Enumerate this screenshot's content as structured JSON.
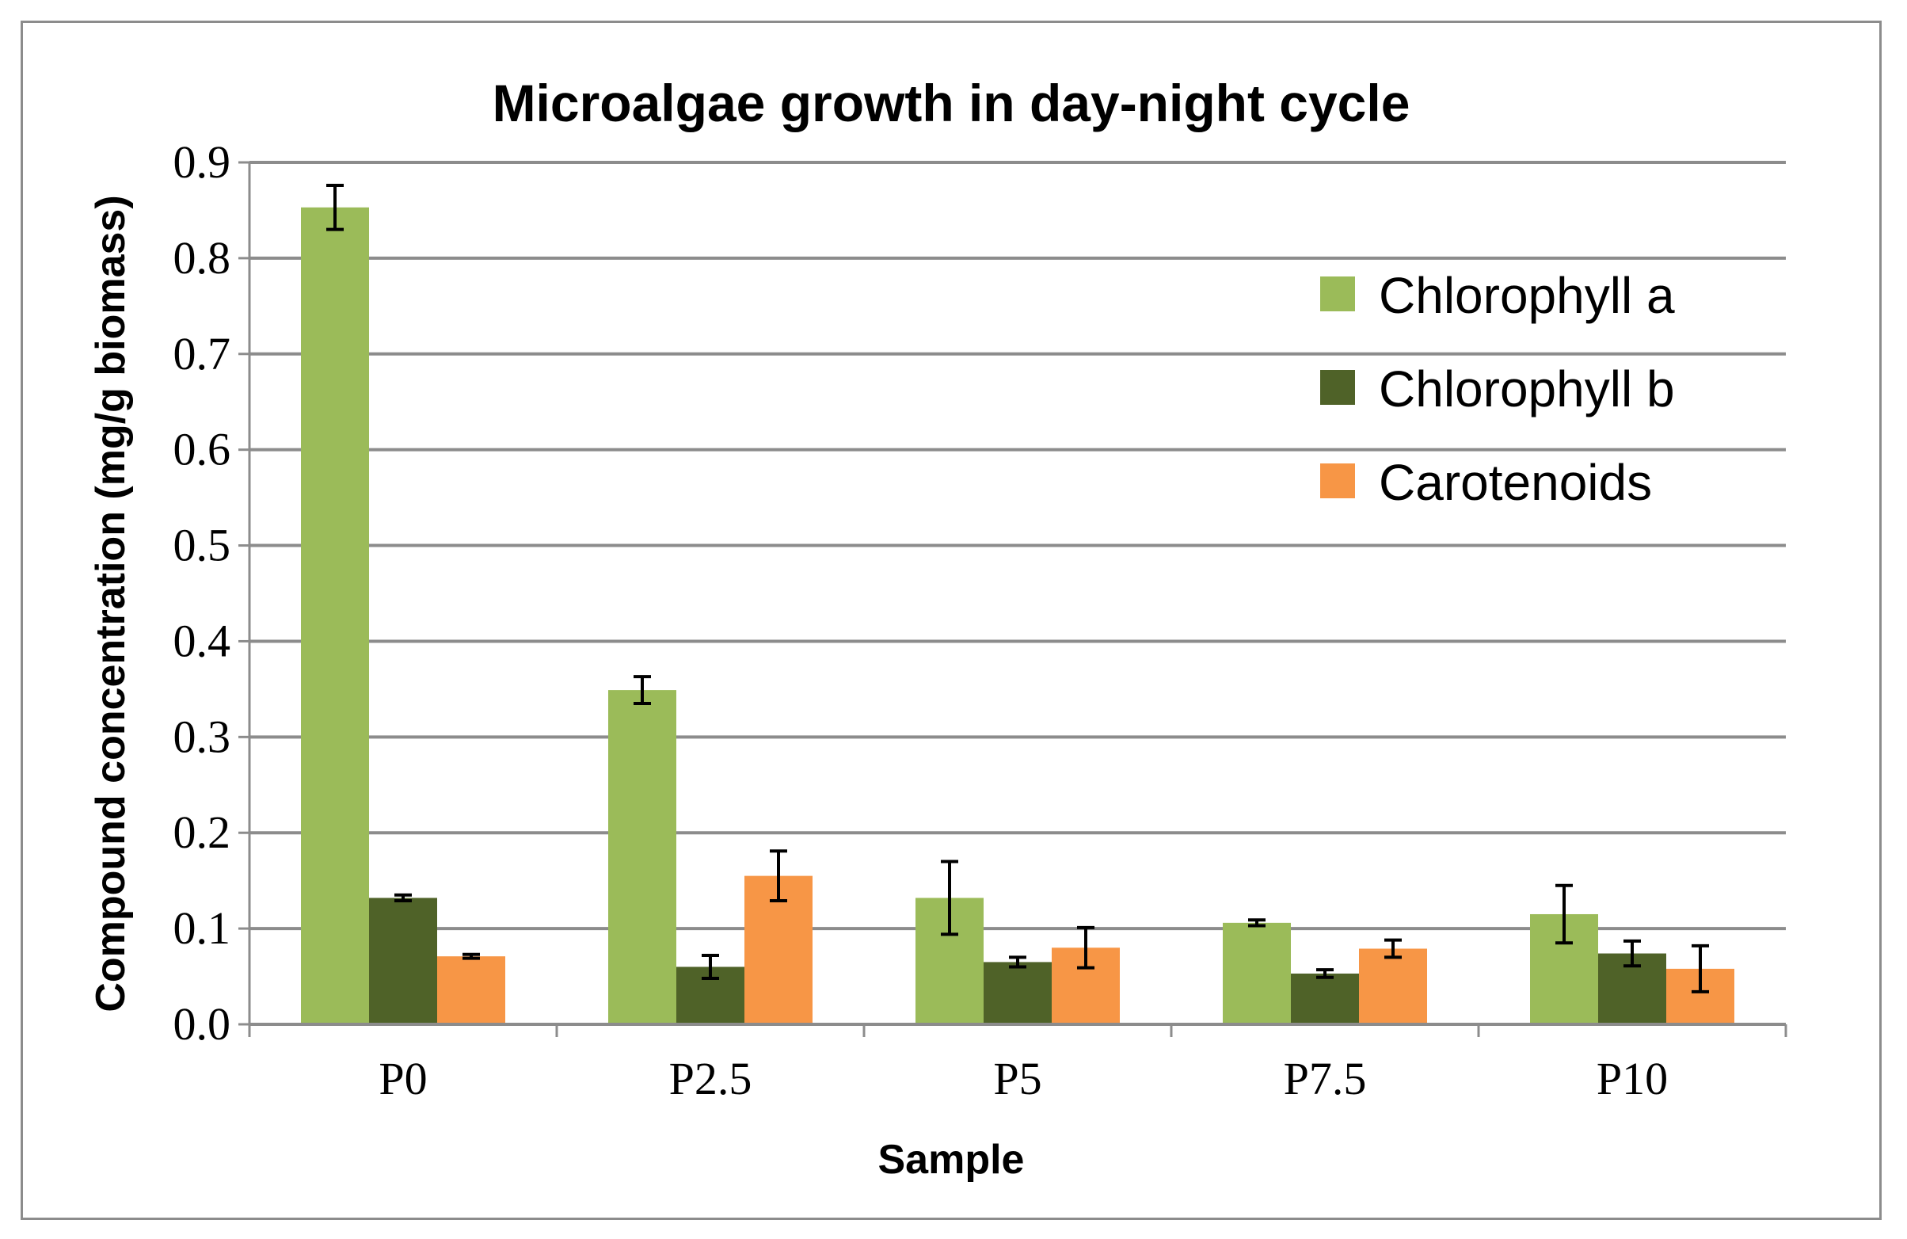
{
  "chart_data": {
    "type": "bar",
    "title": "Microalgae growth in day-night cycle",
    "xlabel": "Sample",
    "ylabel": "Compound concentration (mg/g biomass)",
    "categories": [
      "P0",
      "P2.5",
      "P5",
      "P7.5",
      "P10"
    ],
    "ylim": [
      0,
      0.9
    ],
    "yticks": [
      "0.0",
      "0.1",
      "0.2",
      "0.3",
      "0.4",
      "0.5",
      "0.6",
      "0.7",
      "0.8",
      "0.9"
    ],
    "grid": true,
    "legend_position": "top-right",
    "series": [
      {
        "name": "Chlorophyll a",
        "color": "#9bbb59",
        "values": [
          0.853,
          0.349,
          0.132,
          0.106,
          0.115
        ],
        "errors": [
          0.023,
          0.014,
          0.038,
          0.003,
          0.03
        ]
      },
      {
        "name": "Chlorophyll b",
        "color": "#4f6228",
        "values": [
          0.132,
          0.06,
          0.065,
          0.053,
          0.074
        ],
        "errors": [
          0.003,
          0.012,
          0.005,
          0.004,
          0.013
        ]
      },
      {
        "name": "Carotenoids",
        "color": "#f79646",
        "values": [
          0.071,
          0.155,
          0.08,
          0.079,
          0.058
        ],
        "errors": [
          0.002,
          0.026,
          0.021,
          0.009,
          0.024
        ]
      }
    ]
  }
}
